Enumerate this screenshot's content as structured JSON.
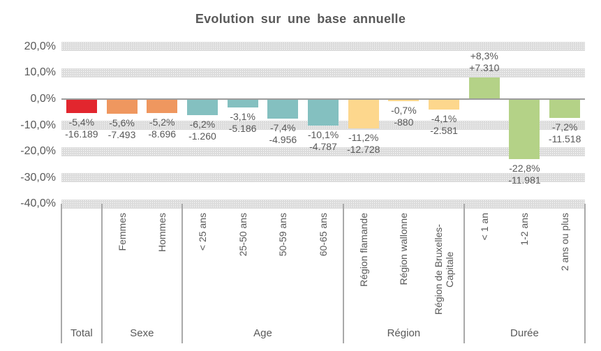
{
  "chart_data": {
    "type": "bar",
    "title": "Evolution sur une base annuelle",
    "xlabel": "",
    "ylabel": "",
    "ylim": [
      -40,
      20
    ],
    "grid": "horizontal-dotted-bands",
    "legend": "none",
    "yticks": [
      {
        "value": 20,
        "label": "20,0%"
      },
      {
        "value": 10,
        "label": "10,0%"
      },
      {
        "value": 0,
        "label": "0,0%"
      },
      {
        "value": -10,
        "label": "-10,0%"
      },
      {
        "value": -20,
        "label": "-20,0%"
      },
      {
        "value": -30,
        "label": "-30,0%"
      },
      {
        "value": -40,
        "label": "-40,0%"
      }
    ],
    "groups": [
      {
        "label": "Total",
        "color": "#e2262e",
        "bars": [
          {
            "category": "",
            "pct": -5.4,
            "pct_label": "-5,4%",
            "abs_label": "-16.189"
          }
        ]
      },
      {
        "label": "Sexe",
        "color": "#ef975f",
        "bars": [
          {
            "category": "Femmes",
            "pct": -5.6,
            "pct_label": "-5,6%",
            "abs_label": "-7.493"
          },
          {
            "category": "Hommes",
            "pct": -5.2,
            "pct_label": "-5,2%",
            "abs_label": "-8.696"
          }
        ]
      },
      {
        "label": "Age",
        "color": "#84c0c0",
        "bars": [
          {
            "category": "< 25 ans",
            "pct": -6.2,
            "pct_label": "-6,2%",
            "abs_label": "-1.260"
          },
          {
            "category": "25-50 ans",
            "pct": -3.1,
            "pct_label": "-3,1%",
            "abs_label": "-5.186"
          },
          {
            "category": "50-59 ans",
            "pct": -7.4,
            "pct_label": "-7,4%",
            "abs_label": "-4.956"
          },
          {
            "category": "60-65 ans",
            "pct": -10.1,
            "pct_label": "-10,1%",
            "abs_label": "-4.787"
          }
        ]
      },
      {
        "label": "Région",
        "color": "#fdd78d",
        "bars": [
          {
            "category": "Région flamande",
            "pct": -11.2,
            "pct_label": "-11,2%",
            "abs_label": "-12.728"
          },
          {
            "category": "Région wallonne",
            "pct": -0.7,
            "pct_label": "-0,7%",
            "abs_label": "-880"
          },
          {
            "category": "Région de Bruxelles-Capitale",
            "pct": -4.1,
            "pct_label": "-4,1%",
            "abs_label": "-2.581"
          }
        ]
      },
      {
        "label": "Durée",
        "color": "#b4d287",
        "bars": [
          {
            "category": "< 1 an",
            "pct": 8.3,
            "pct_label": "+8,3%",
            "abs_label": "+7.310"
          },
          {
            "category": "1-2 ans",
            "pct": -22.8,
            "pct_label": "-22,8%",
            "abs_label": "-11.981"
          },
          {
            "category": "2 ans ou plus",
            "pct": -7.2,
            "pct_label": "-7,2%",
            "abs_label": "-11.518"
          }
        ]
      }
    ],
    "colors": {
      "text": "#595959",
      "axis_line": "#9c9c9c",
      "gridline_band": "#dcdcdc",
      "divider": "#a9a9a9"
    }
  }
}
